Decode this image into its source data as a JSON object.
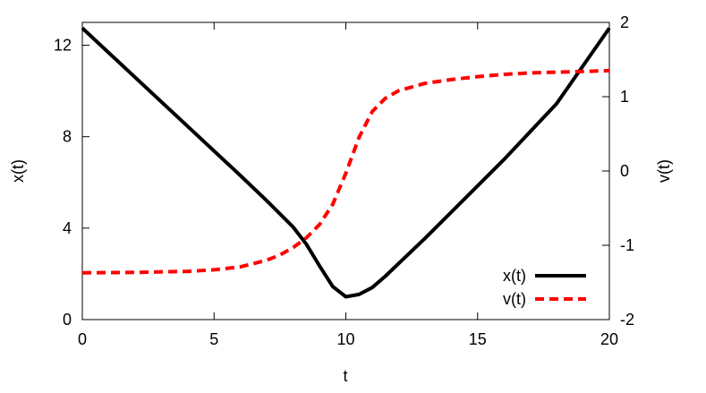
{
  "chart_data": {
    "type": "line",
    "xlabel": "t",
    "ylabel_left": "x(t)",
    "ylabel_right": "v(t)",
    "xlim": [
      0,
      20
    ],
    "ylim_left": [
      0,
      13
    ],
    "ylim_right": [
      -2,
      2
    ],
    "x_ticks": [
      "0",
      "5",
      "10",
      "15",
      "20"
    ],
    "y_left_ticks": [
      "0",
      "4",
      "8",
      "12"
    ],
    "y_right_ticks": [
      "-2",
      "-1",
      "0",
      "1",
      "2"
    ],
    "grid": false,
    "legend_position": "bottom-right",
    "series": [
      {
        "name": "x(t)",
        "axis": "left",
        "style": "solid",
        "color": "#000000",
        "x": [
          0,
          2,
          4,
          6,
          7,
          8,
          8.5,
          9,
          9.5,
          10,
          10.5,
          11,
          11.5,
          12,
          13,
          14,
          16,
          18,
          20
        ],
        "y": [
          12.75,
          10.6,
          8.45,
          6.3,
          5.2,
          4.05,
          3.3,
          2.35,
          1.45,
          1.0,
          1.1,
          1.4,
          1.9,
          2.45,
          3.55,
          4.7,
          7.0,
          9.45,
          12.75
        ]
      },
      {
        "name": "v(t)",
        "axis": "right",
        "style": "dashed",
        "color": "#ff0000",
        "x": [
          0,
          2,
          4,
          5,
          6,
          7,
          7.5,
          8,
          8.5,
          9,
          9.5,
          10,
          10.5,
          11,
          11.5,
          12,
          13,
          14,
          15,
          16,
          17,
          18,
          19,
          20
        ],
        "y": [
          -1.37,
          -1.365,
          -1.35,
          -1.33,
          -1.29,
          -1.2,
          -1.13,
          -1.03,
          -0.9,
          -0.72,
          -0.45,
          -0.03,
          0.45,
          0.8,
          0.98,
          1.08,
          1.18,
          1.23,
          1.27,
          1.3,
          1.32,
          1.33,
          1.34,
          1.35
        ]
      }
    ]
  }
}
